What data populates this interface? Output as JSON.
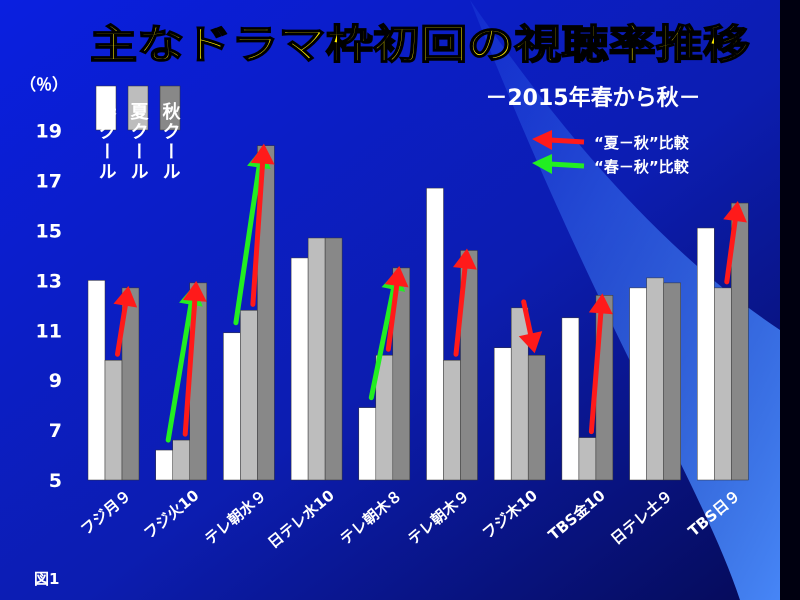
{
  "chart_data": {
    "type": "bar",
    "title": "主なドラマ枠初回の視聴率推移",
    "subtitle": "－2015年春から秋－",
    "ylabel": "（％）",
    "ylim": [
      5,
      20
    ],
    "yticks": [
      "5",
      "7",
      "9",
      "11",
      "13",
      "15",
      "17",
      "19"
    ],
    "categories": [
      "フジ月９",
      "フジ火10",
      "テレ朝水９",
      "日テレ水10",
      "テレ朝木８",
      "テレ朝木９",
      "フジ木10",
      "TBS金10",
      "日テレ土９",
      "TBS日９"
    ],
    "series": [
      {
        "name": "春クール",
        "values": [
          13.0,
          6.2,
          10.9,
          13.9,
          7.9,
          16.7,
          10.3,
          11.5,
          12.7,
          15.1
        ],
        "color": "#ffffff"
      },
      {
        "name": "夏クール",
        "values": [
          9.8,
          6.6,
          11.8,
          14.7,
          10.0,
          9.8,
          11.9,
          6.7,
          13.1,
          12.7
        ],
        "color": "#bdbdbd"
      },
      {
        "name": "秋クール",
        "values": [
          12.7,
          12.9,
          18.4,
          14.7,
          13.5,
          14.2,
          10.0,
          12.4,
          12.9,
          16.1
        ],
        "color": "#888888"
      }
    ],
    "legend_arrows": [
      {
        "label": "“夏－秋”比較",
        "color": "#ff1a1a"
      },
      {
        "label": "“春－秋”比較",
        "color": "#22ee22"
      }
    ],
    "figure_label": "図1"
  }
}
